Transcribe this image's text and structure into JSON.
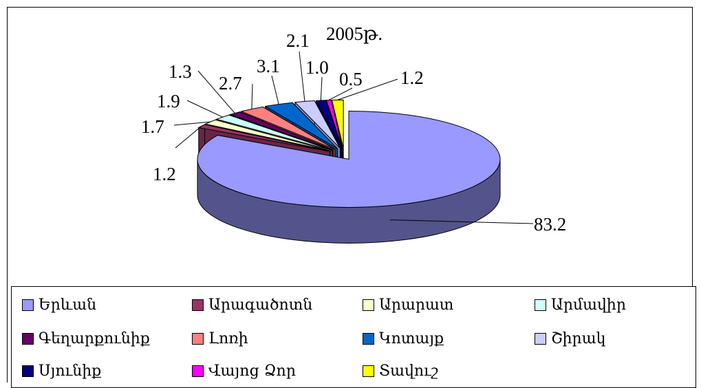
{
  "chart_data": {
    "type": "pie",
    "title": "2005թ.",
    "series": [
      {
        "name": "Երևան",
        "value": 83.2,
        "color": "#9999FF"
      },
      {
        "name": "Արագածոտն",
        "value": 1.2,
        "color": "#993366"
      },
      {
        "name": "Արարատ",
        "value": 1.7,
        "color": "#FFFFCC"
      },
      {
        "name": "Արմավիր",
        "value": 1.9,
        "color": "#CCFFFF"
      },
      {
        "name": "Գեղարքունիք",
        "value": 1.3,
        "color": "#660066"
      },
      {
        "name": "Լոռի",
        "value": 2.7,
        "color": "#FF8080"
      },
      {
        "name": "Կոտայք",
        "value": 3.1,
        "color": "#0066CC"
      },
      {
        "name": "Շիրակ",
        "value": 2.1,
        "color": "#CCCCFF"
      },
      {
        "name": "Սյունիք",
        "value": 1.0,
        "color": "#000080"
      },
      {
        "name": "Վայոց Ձոր",
        "value": 0.5,
        "color": "#FF00FF"
      },
      {
        "name": "Տավուշ",
        "value": 1.2,
        "color": "#FFFF00"
      }
    ],
    "data_labels": [
      "83.2",
      "1.2",
      "1.7",
      "1.9",
      "1.3",
      "2.7",
      "3.1",
      "2.1",
      "1.0",
      "0.5",
      "1.2"
    ],
    "legend_position": "bottom",
    "style": "3d-exploded-pie"
  }
}
